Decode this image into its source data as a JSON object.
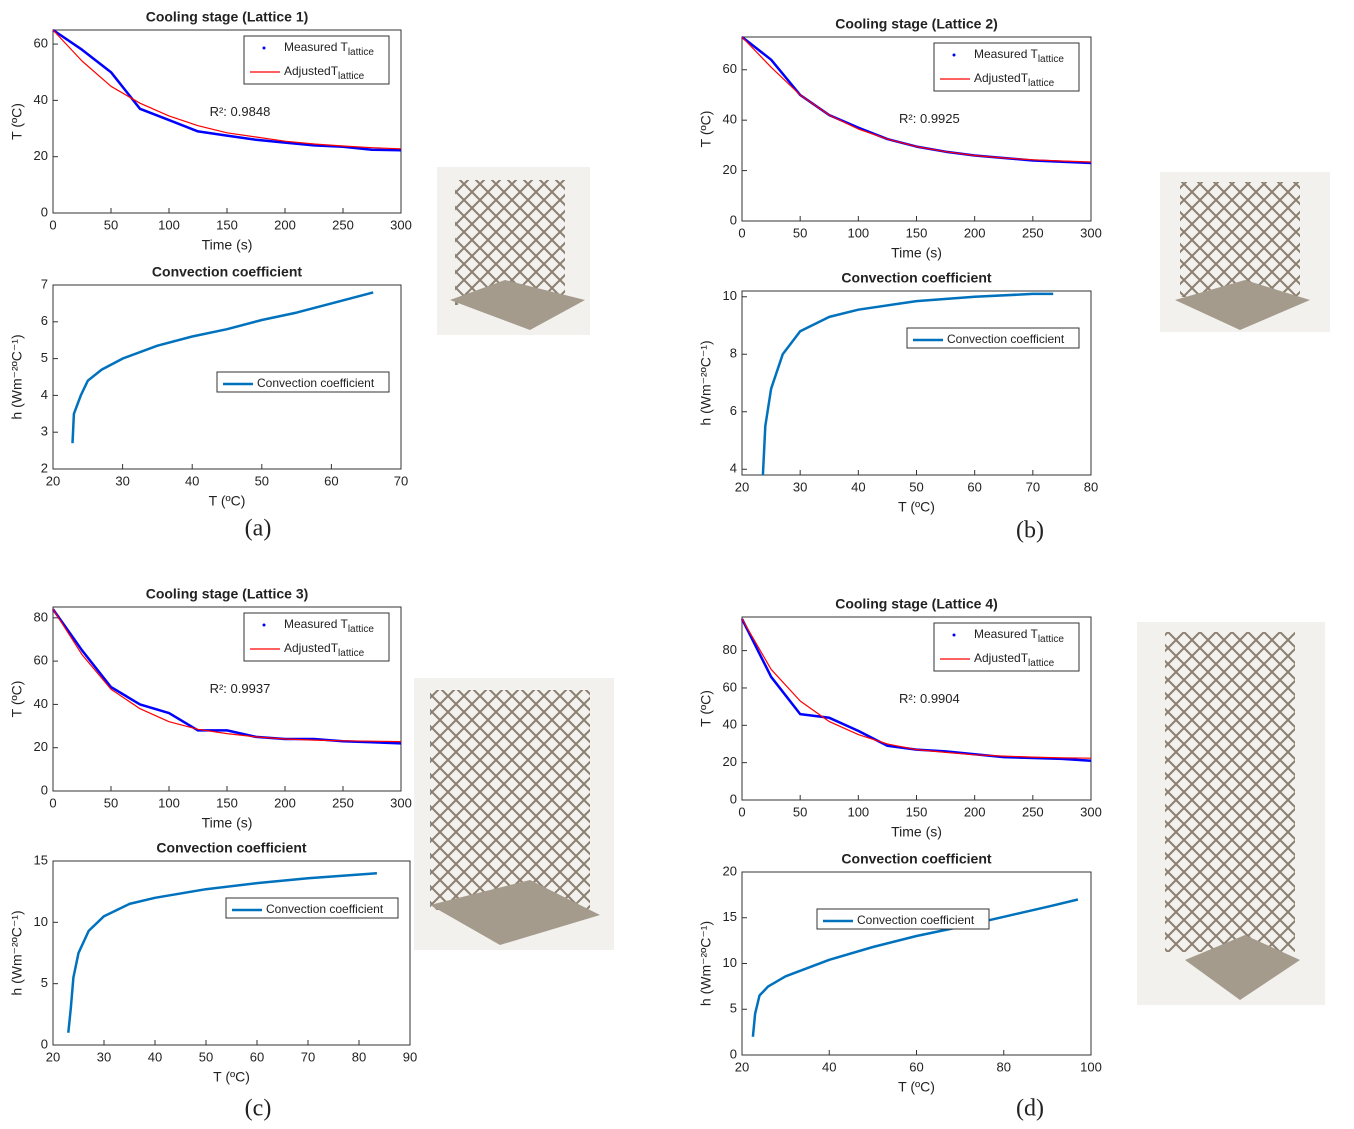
{
  "panel_labels": [
    "(a)",
    "(b)",
    "(c)",
    "(d)"
  ],
  "chart_data": [
    {
      "type": "line",
      "title": "Cooling stage (Lattice 1)",
      "xlabel": "Time (s)",
      "ylabel": "T (ºC)",
      "xlim": [
        0,
        300
      ],
      "xticks": [
        0,
        50,
        100,
        150,
        200,
        250,
        300
      ],
      "ylim": [
        0,
        65
      ],
      "yticks": [
        0,
        20,
        40,
        60
      ],
      "x": [
        0,
        25,
        50,
        75,
        100,
        125,
        150,
        175,
        200,
        225,
        250,
        275,
        300
      ],
      "series": [
        {
          "name": "Measured T",
          "name_subscript": "lattice",
          "color": "#0000ff",
          "marker": "point",
          "values": [
            65,
            58,
            50,
            37,
            33,
            29,
            27.5,
            26,
            25,
            24,
            23.5,
            22.5,
            22.3
          ]
        },
        {
          "name": "AdjustedT",
          "name_subscript": "lattice",
          "color": "#ff0000",
          "marker": "none",
          "values": [
            65,
            54,
            45,
            39,
            34.5,
            31,
            28.5,
            27,
            25.5,
            24.5,
            23.8,
            23.2,
            22.8
          ]
        }
      ],
      "legend": "upper right",
      "annotation": "R²: 0.9848"
    },
    {
      "type": "line",
      "title": "Convection coefficient",
      "xlabel": "T (ºC)",
      "ylabel": "h (Wm⁻²ºC⁻¹)",
      "xlim": [
        20,
        70
      ],
      "xticks": [
        20,
        30,
        40,
        50,
        60,
        70
      ],
      "ylim": [
        2,
        7
      ],
      "yticks": [
        2,
        3,
        4,
        5,
        6,
        7
      ],
      "x": [
        22.8,
        23,
        24,
        25,
        27,
        30,
        35,
        40,
        45,
        50,
        55,
        60,
        66
      ],
      "series": [
        {
          "name": "Convection coefficient",
          "color": "#0072bd",
          "marker": "none",
          "values": [
            2.7,
            3.5,
            4.0,
            4.4,
            4.7,
            5.0,
            5.35,
            5.6,
            5.8,
            6.05,
            6.25,
            6.5,
            6.8
          ]
        }
      ],
      "legend": "center right"
    },
    {
      "type": "line",
      "title": "Cooling stage (Lattice 2)",
      "xlabel": "Time (s)",
      "ylabel": "T (ºC)",
      "xlim": [
        0,
        300
      ],
      "xticks": [
        0,
        50,
        100,
        150,
        200,
        250,
        300
      ],
      "ylim": [
        0,
        73
      ],
      "yticks": [
        0,
        20,
        40,
        60
      ],
      "x": [
        0,
        25,
        50,
        75,
        100,
        125,
        150,
        175,
        200,
        225,
        250,
        275,
        300
      ],
      "series": [
        {
          "name": "Measured T",
          "name_subscript": "lattice",
          "color": "#0000ff",
          "marker": "point",
          "values": [
            73,
            64,
            50,
            42,
            37,
            32.5,
            29.5,
            27.5,
            26,
            25,
            24,
            23.5,
            23
          ]
        },
        {
          "name": "AdjustedT",
          "name_subscript": "lattice",
          "color": "#ff0000",
          "marker": "none",
          "values": [
            73,
            61,
            50,
            42,
            36.5,
            32.5,
            29.5,
            27.5,
            26,
            25,
            24.3,
            23.8,
            23.4
          ]
        }
      ],
      "legend": "upper right",
      "annotation": "R²: 0.9925"
    },
    {
      "type": "line",
      "title": "Convection coefficient",
      "xlabel": "T (ºC)",
      "ylabel": "h (Wm⁻²ºC⁻¹)",
      "xlim": [
        20,
        80
      ],
      "xticks": [
        20,
        30,
        40,
        50,
        60,
        70,
        80
      ],
      "ylim": [
        3.8,
        10.2
      ],
      "yticks": [
        4,
        6,
        8,
        10
      ],
      "x": [
        23.6,
        24,
        25,
        27,
        30,
        35,
        40,
        50,
        60,
        70,
        73.5
      ],
      "series": [
        {
          "name": "Convection coefficient",
          "color": "#0072bd",
          "marker": "none",
          "values": [
            3.8,
            5.5,
            6.8,
            8.0,
            8.8,
            9.3,
            9.55,
            9.85,
            10.0,
            10.1,
            10.1
          ]
        }
      ],
      "legend": "upper right"
    },
    {
      "type": "line",
      "title": "Cooling stage (Lattice 3)",
      "xlabel": "Time (s)",
      "ylabel": "T (ºC)",
      "xlim": [
        0,
        300
      ],
      "xticks": [
        0,
        50,
        100,
        150,
        200,
        250,
        300
      ],
      "ylim": [
        0,
        85
      ],
      "yticks": [
        0,
        20,
        40,
        60,
        80
      ],
      "x": [
        0,
        25,
        50,
        75,
        100,
        125,
        150,
        175,
        200,
        225,
        250,
        275,
        300
      ],
      "series": [
        {
          "name": "Measured T",
          "name_subscript": "lattice",
          "color": "#0000ff",
          "marker": "point",
          "values": [
            84,
            65,
            48,
            40,
            36,
            28,
            28,
            25,
            24,
            24,
            23,
            22.5,
            22
          ]
        },
        {
          "name": "AdjustedT",
          "name_subscript": "lattice",
          "color": "#ff0000",
          "marker": "none",
          "values": [
            84,
            63,
            47,
            38,
            32,
            28.5,
            26.5,
            25,
            24,
            23.5,
            23.2,
            23,
            22.8
          ]
        }
      ],
      "legend": "upper right",
      "annotation": "R²: 0.9937"
    },
    {
      "type": "line",
      "title": "Convection coefficient",
      "xlabel": "T (ºC)",
      "ylabel": "h (Wm⁻²ºC⁻¹)",
      "xlim": [
        20,
        90
      ],
      "xticks": [
        20,
        30,
        40,
        50,
        60,
        70,
        80,
        90
      ],
      "ylim": [
        0,
        15
      ],
      "yticks": [
        0,
        5,
        10,
        15
      ],
      "x": [
        23,
        23.5,
        24,
        25,
        27,
        30,
        35,
        40,
        50,
        60,
        70,
        83.5
      ],
      "series": [
        {
          "name": "Convection coefficient",
          "color": "#0072bd",
          "marker": "none",
          "values": [
            1,
            3,
            5.5,
            7.5,
            9.3,
            10.5,
            11.5,
            12,
            12.7,
            13.2,
            13.6,
            14
          ]
        }
      ],
      "legend": "upper right"
    },
    {
      "type": "line",
      "title": "Cooling stage (Lattice 4)",
      "xlabel": "Time (s)",
      "ylabel": "T (ºC)",
      "xlim": [
        0,
        300
      ],
      "xticks": [
        0,
        50,
        100,
        150,
        200,
        250,
        300
      ],
      "ylim": [
        0,
        98
      ],
      "yticks": [
        0,
        20,
        40,
        60,
        80
      ],
      "x": [
        0,
        25,
        50,
        75,
        100,
        125,
        150,
        175,
        200,
        225,
        250,
        275,
        300
      ],
      "series": [
        {
          "name": "Measured T",
          "name_subscript": "lattice",
          "color": "#0000ff",
          "marker": "point",
          "values": [
            97,
            66,
            46,
            44,
            37,
            29,
            27,
            26,
            24.5,
            23,
            22.5,
            22,
            21
          ]
        },
        {
          "name": "AdjustedT",
          "name_subscript": "lattice",
          "color": "#ff0000",
          "marker": "none",
          "values": [
            97,
            70,
            53,
            42,
            35,
            30,
            27,
            25.5,
            24.2,
            23.5,
            23,
            22.6,
            22.4
          ]
        }
      ],
      "legend": "upper right",
      "annotation": "R²: 0.9904"
    },
    {
      "type": "line",
      "title": "Convection coefficient",
      "xlabel": "T (ºC)",
      "ylabel": "h (Wm⁻²ºC⁻¹)",
      "xlim": [
        20,
        100
      ],
      "xticks": [
        20,
        40,
        60,
        80,
        100
      ],
      "ylim": [
        0,
        20
      ],
      "yticks": [
        0,
        5,
        10,
        15,
        20
      ],
      "x": [
        22.5,
        23,
        24,
        26,
        30,
        40,
        50,
        60,
        70,
        80,
        90,
        97
      ],
      "series": [
        {
          "name": "Convection coefficient",
          "color": "#0072bd",
          "marker": "none",
          "values": [
            2,
            4.5,
            6.5,
            7.5,
            8.6,
            10.4,
            11.8,
            13,
            14,
            15.1,
            16.2,
            17
          ]
        }
      ],
      "legend": "upper left"
    }
  ]
}
